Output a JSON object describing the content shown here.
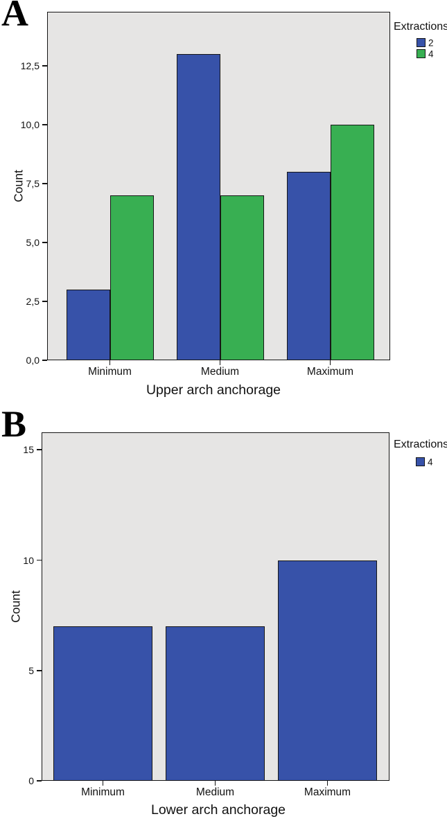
{
  "figure": {
    "panel_a_letter": "A",
    "panel_b_letter": "B"
  },
  "colors": {
    "series_blue": "#3752a9",
    "series_green": "#38af52",
    "plot_background": "#e6e5e4",
    "frame": "#141414"
  },
  "chart_data": [
    {
      "type": "bar",
      "panel": "A",
      "categories": [
        "Minimum",
        "Medium",
        "Maximum"
      ],
      "series": [
        {
          "name": "2",
          "color": "#3752a9",
          "values": [
            3,
            13,
            8
          ]
        },
        {
          "name": "4",
          "color": "#38af52",
          "values": [
            7,
            7,
            10
          ]
        }
      ],
      "xlabel": "Upper arch anchorage",
      "ylabel": "Count",
      "ylim": [
        0,
        14.8
      ],
      "yticks": [
        0,
        2.5,
        5,
        7.5,
        10,
        12.5
      ],
      "ytick_labels": [
        "0,0",
        "2,5",
        "5,0",
        "7,5",
        "10,0",
        "12,5"
      ],
      "legend_title": "Extractions",
      "legend_position": "top-right-outside",
      "grid": false
    },
    {
      "type": "bar",
      "panel": "B",
      "categories": [
        "Minimum",
        "Medium",
        "Maximum"
      ],
      "series": [
        {
          "name": "4",
          "color": "#3752a9",
          "values": [
            7,
            7,
            10
          ]
        }
      ],
      "xlabel": "Lower arch anchorage",
      "ylabel": "Count",
      "ylim": [
        0,
        15.8
      ],
      "yticks": [
        0,
        5,
        10,
        15
      ],
      "ytick_labels": [
        "0",
        "5",
        "10",
        "15"
      ],
      "legend_title": "Extractions",
      "legend_position": "top-right-outside",
      "grid": false
    }
  ]
}
